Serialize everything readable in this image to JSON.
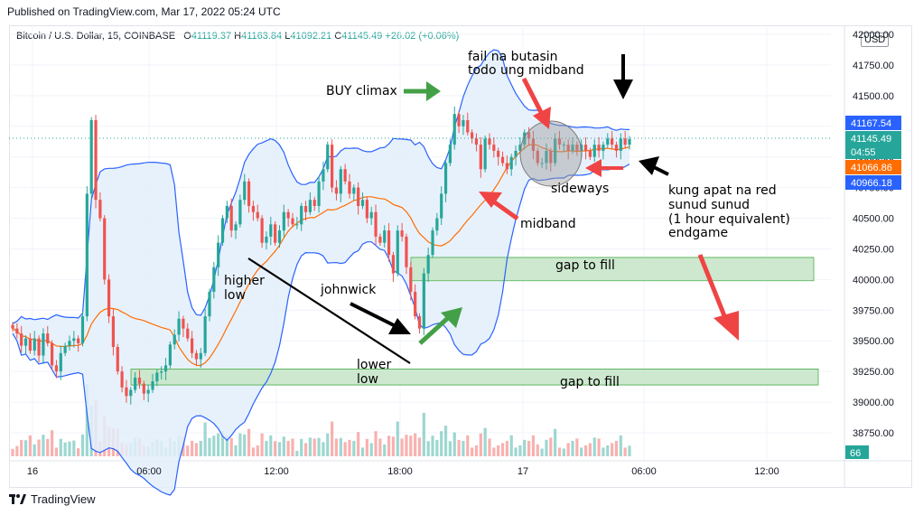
{
  "header": {
    "published": "Published on TradingView.com, Mar 17, 2022 05:24 UTC",
    "symbol": "Bitcoin / U.S. Dollar, 15, COINBASE",
    "o_label": "O",
    "o_value": "41119.37",
    "h_label": "H",
    "h_value": "41163.84",
    "l_label": "L",
    "l_value": "41092.21",
    "c_label": "C",
    "c_value": "41145.49",
    "change": "+26.02 (+0.06%)",
    "currency": "USD"
  },
  "footer": {
    "brand": "TradingView"
  },
  "colors": {
    "up": "#26a69a",
    "down": "#ef5350",
    "band": "#2962ff",
    "midband": "#ff6d00",
    "band_fill": "#e3effa",
    "gap_fill": "#c8e6c9",
    "gap_border": "#4caf50",
    "annot_red": "#f04444",
    "annot_green": "#43a047"
  },
  "chart_data": {
    "type": "candlestick",
    "y_ticks": [
      "42000.00",
      "41750.00",
      "41500.00",
      "41250.00",
      "41000.00",
      "40750.00",
      "40500.00",
      "40250.00",
      "40000.00",
      "39750.00",
      "39500.00",
      "39250.00",
      "39000.00",
      "38750.00"
    ],
    "x_ticks": [
      "16",
      "06:00",
      "12:00",
      "18:00",
      "17",
      "06:00",
      "12:00"
    ],
    "price_tags": [
      {
        "text": "41167.54",
        "color": "#2962ff"
      },
      {
        "text": "41145.49",
        "color": "#26a69a"
      },
      {
        "text": "04:55",
        "color": "#26a69a"
      },
      {
        "text": "41066.86",
        "color": "#ff6d00"
      },
      {
        "text": "40966.18",
        "color": "#2962ff"
      }
    ],
    "volume_tag": "66",
    "close_series": [
      39600,
      39560,
      39460,
      39520,
      39420,
      39520,
      39380,
      39560,
      39480,
      39300,
      39250,
      39400,
      39460,
      39500,
      39520,
      39480,
      39700,
      40700,
      41300,
      40650,
      40500,
      40000,
      39700,
      39450,
      39250,
      39120,
      39050,
      39100,
      39200,
      39150,
      39070,
      39100,
      39170,
      39240,
      39250,
      39300,
      39470,
      39550,
      39680,
      39600,
      39520,
      39400,
      39350,
      39400,
      39700,
      39900,
      40100,
      40300,
      40500,
      40600,
      40400,
      40450,
      40650,
      40800,
      40600,
      40550,
      40500,
      40300,
      40350,
      40450,
      40300,
      40400,
      40550,
      40500,
      40450,
      40450,
      40600,
      40550,
      40650,
      40600,
      40800,
      40900,
      41100,
      40750,
      40700,
      40900,
      40800,
      40700,
      40750,
      40600,
      40650,
      40500,
      40550,
      40350,
      40300,
      40400,
      40200,
      40050,
      40400,
      40350,
      40100,
      39900,
      39700,
      39600,
      40050,
      40200,
      40400,
      40500,
      40700,
      40950,
      41100,
      41350,
      41250,
      41300,
      41200,
      41150,
      41100,
      40900,
      41150,
      41100,
      41050,
      41000,
      40950,
      40900,
      41000,
      41050,
      41100,
      41200,
      41150,
      41050,
      40950,
      40950,
      41050,
      40950,
      41150,
      41100,
      41100,
      41050,
      41100,
      41050,
      41100,
      41050,
      41000,
      41100,
      41050,
      41100,
      41150,
      41100,
      41050,
      41150,
      41100,
      41145
    ],
    "gap_zones": [
      {
        "label": "gap to fill",
        "price_from": 40050,
        "price_to": 40120
      },
      {
        "label": "gap to fill",
        "price_from": 39180,
        "price_to": 39230
      }
    ],
    "annotations": [
      "fail na butasin",
      "todo ung midband",
      "BUY climax",
      "sideways",
      "kung apat na red",
      "sunud sunud",
      "(1 hour equivalent)",
      "endgame",
      "midband",
      "higher",
      "low",
      "johnwick",
      "lower",
      "low"
    ]
  }
}
